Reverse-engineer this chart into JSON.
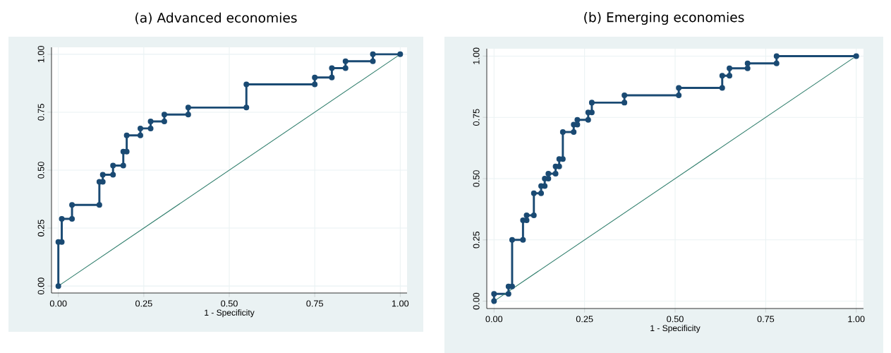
{
  "chart_data": [
    {
      "type": "line",
      "title": "(a) Advanced economies",
      "xlabel": "1 - Specificity",
      "xlim": [
        -0.02,
        1.02
      ],
      "ylim": [
        -0.03,
        1.03
      ],
      "xticks": [
        {
          "value": 0,
          "label": "0.00"
        },
        {
          "value": 0.25,
          "label": "0.25"
        },
        {
          "value": 0.5,
          "label": "0.50"
        },
        {
          "value": 0.75,
          "label": "0.75"
        },
        {
          "value": 1,
          "label": "1.00"
        }
      ],
      "yticks": [
        {
          "value": 0,
          "label": "0.00"
        },
        {
          "value": 0.25,
          "label": "0.25"
        },
        {
          "value": 0.5,
          "label": "0.50"
        },
        {
          "value": 0.75,
          "label": "0.75"
        },
        {
          "value": 1,
          "label": "1.00"
        }
      ],
      "grid": true,
      "marker": "circle",
      "series": [
        {
          "color": "#1a4a73",
          "x": [
            0,
            0,
            0.01,
            0.01,
            0.04,
            0.04,
            0.12,
            0.12,
            0.13,
            0.13,
            0.16,
            0.16,
            0.19,
            0.19,
            0.2,
            0.2,
            0.24,
            0.24,
            0.27,
            0.27,
            0.31,
            0.31,
            0.38,
            0.38,
            0.55,
            0.55,
            0.75,
            0.75,
            0.8,
            0.8,
            0.84,
            0.84,
            0.92,
            0.92,
            1
          ],
          "values": [
            0,
            0.19,
            0.19,
            0.29,
            0.29,
            0.35,
            0.35,
            0.45,
            0.45,
            0.48,
            0.48,
            0.52,
            0.52,
            0.58,
            0.58,
            0.65,
            0.65,
            0.68,
            0.68,
            0.71,
            0.71,
            0.74,
            0.74,
            0.77,
            0.77,
            0.87,
            0.87,
            0.9,
            0.9,
            0.94,
            0.94,
            0.97,
            0.97,
            1,
            1
          ]
        },
        {
          "type": "line",
          "marker": "none",
          "color": "#2e7d6b",
          "x": [
            0,
            1
          ],
          "values": [
            0,
            1
          ]
        }
      ]
    },
    {
      "type": "line",
      "title": "(b) Emerging economies",
      "xlabel": "1 - Specificity",
      "xlim": [
        -0.02,
        1.02
      ],
      "ylim": [
        -0.03,
        1.03
      ],
      "xticks": [
        {
          "value": 0,
          "label": "0.00"
        },
        {
          "value": 0.25,
          "label": "0.25"
        },
        {
          "value": 0.5,
          "label": "0.50"
        },
        {
          "value": 0.75,
          "label": "0.75"
        },
        {
          "value": 1,
          "label": "1.00"
        }
      ],
      "yticks": [
        {
          "value": 0,
          "label": "0.00"
        },
        {
          "value": 0.25,
          "label": "0.25"
        },
        {
          "value": 0.5,
          "label": "0.50"
        },
        {
          "value": 0.75,
          "label": "0.75"
        },
        {
          "value": 1,
          "label": "1.00"
        }
      ],
      "grid": true,
      "marker": "circle",
      "series": [
        {
          "color": "#1a4a73",
          "x": [
            0,
            0,
            0.04,
            0.04,
            0.05,
            0.05,
            0.08,
            0.08,
            0.09,
            0.09,
            0.11,
            0.11,
            0.13,
            0.13,
            0.14,
            0.14,
            0.15,
            0.15,
            0.17,
            0.17,
            0.18,
            0.18,
            0.19,
            0.19,
            0.22,
            0.22,
            0.23,
            0.23,
            0.26,
            0.26,
            0.27,
            0.27,
            0.36,
            0.36,
            0.51,
            0.51,
            0.63,
            0.63,
            0.65,
            0.65,
            0.7,
            0.7,
            0.78,
            0.78,
            1
          ],
          "values": [
            0,
            0.03,
            0.03,
            0.06,
            0.06,
            0.25,
            0.25,
            0.33,
            0.33,
            0.35,
            0.35,
            0.44,
            0.44,
            0.47,
            0.47,
            0.5,
            0.5,
            0.52,
            0.52,
            0.55,
            0.55,
            0.58,
            0.58,
            0.69,
            0.69,
            0.72,
            0.72,
            0.74,
            0.74,
            0.77,
            0.77,
            0.81,
            0.81,
            0.84,
            0.84,
            0.87,
            0.87,
            0.92,
            0.92,
            0.95,
            0.95,
            0.97,
            0.97,
            1,
            1
          ]
        },
        {
          "type": "line",
          "marker": "none",
          "color": "#2e7d6b",
          "x": [
            0,
            1
          ],
          "values": [
            0,
            1
          ]
        }
      ]
    }
  ]
}
